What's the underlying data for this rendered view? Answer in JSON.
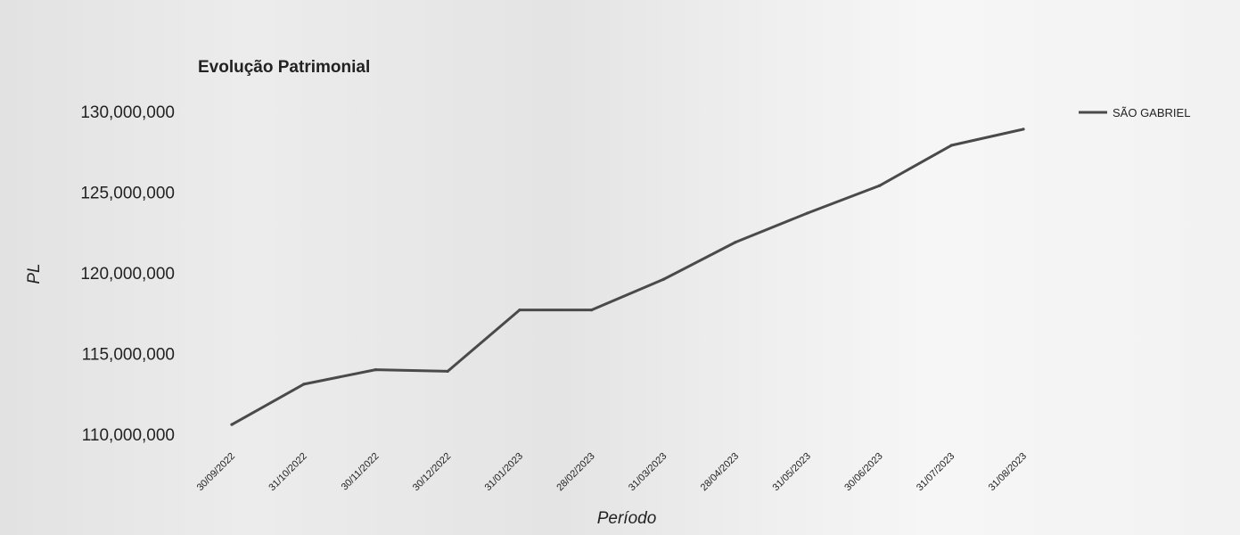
{
  "chart_data": {
    "type": "line",
    "title": "Evolução Patrimonial",
    "xlabel": "Período",
    "ylabel": "PL",
    "categories": [
      "30/09/2022",
      "31/10/2022",
      "30/11/2022",
      "30/12/2022",
      "31/01/2023",
      "28/02/2023",
      "31/03/2023",
      "28/04/2023",
      "31/05/2023",
      "30/06/2023",
      "31/07/2023",
      "31/08/2023"
    ],
    "series": [
      {
        "name": "SÃO GABRIEL",
        "values": [
          110600000,
          113100000,
          114000000,
          113900000,
          117700000,
          117700000,
          119600000,
          121900000,
          123700000,
          125400000,
          127900000,
          128900000
        ]
      }
    ],
    "y_ticks": [
      "110,000,000",
      "115,000,000",
      "120,000,000",
      "125,000,000",
      "130,000,000"
    ],
    "ylim": [
      110000000,
      130000000
    ],
    "grid": false,
    "legend_position": "top-right",
    "line_color": "#4a4a4a"
  }
}
